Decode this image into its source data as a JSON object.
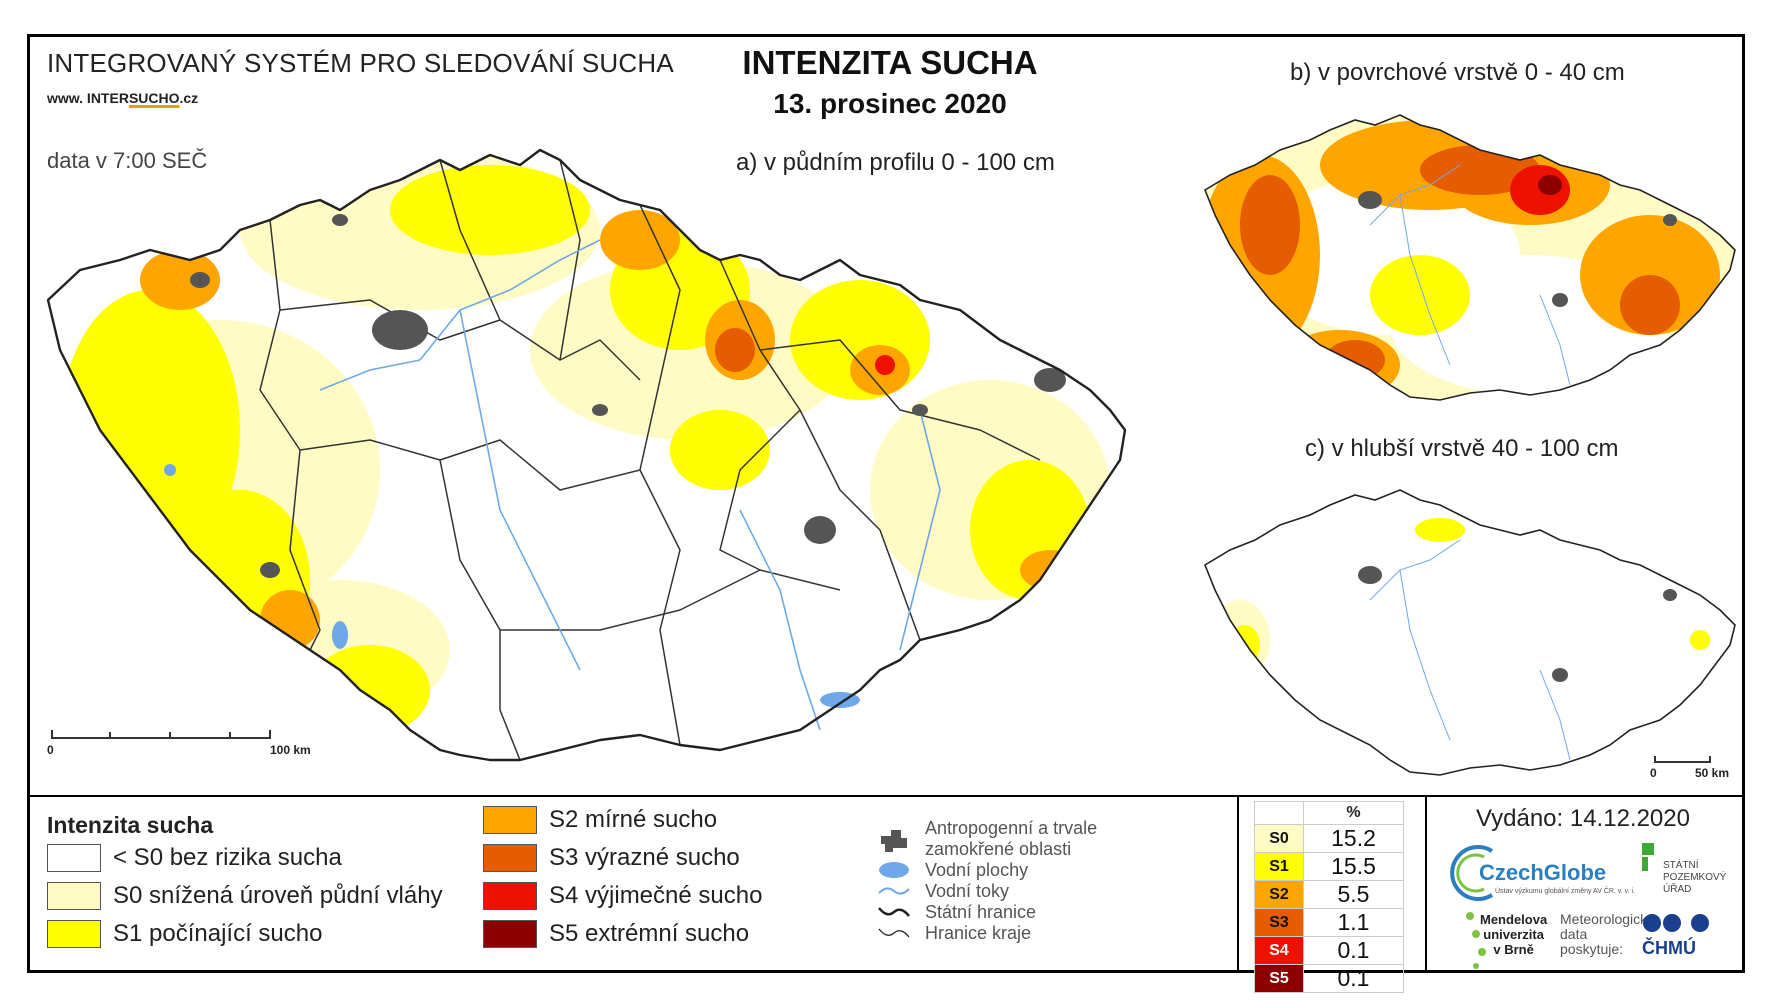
{
  "header": {
    "system_title": "INTEGROVANÝ SYSTÉM PRO SLEDOVÁNÍ SUCHA",
    "website_prefix": "www. INTER",
    "website_highlight": "SUCHO",
    "website_suffix": ".cz",
    "data_time": "data v 7:00 SEČ",
    "main_title": "INTENZITA SUCHA",
    "main_date": "13. prosinec 2020"
  },
  "maps": {
    "a_label": "a) v půdním profilu 0 - 100 cm",
    "b_label": "b) v povrchové vrstvě 0 - 40 cm",
    "c_label": "c) v hlubší vrstvě 40 - 100 cm",
    "scale_a_start": "0",
    "scale_a_end": "100 km",
    "scale_c_start": "0",
    "scale_c_end": "50 km"
  },
  "legend": {
    "title": "Intenzita sucha",
    "classes": [
      {
        "label": "< S0 bez rizika sucha",
        "color": "#ffffff"
      },
      {
        "label": "S0 snížená úroveň půdní vláhy",
        "color": "#fffbc4"
      },
      {
        "label": "S1 počínající sucho",
        "color": "#ffff00"
      },
      {
        "label": "S2 mírné sucho",
        "color": "#ffa500"
      },
      {
        "label": "S3 výrazné sucho",
        "color": "#e65c00"
      },
      {
        "label": "S4 výjimečné sucho",
        "color": "#ee1100"
      },
      {
        "label": "S5 extrémní sucho",
        "color": "#8b0000"
      }
    ],
    "symbols": [
      {
        "label_line1": "Antropogenní a trvale",
        "label_line2": "zamokřené oblasti",
        "icon": "urban-area-icon"
      },
      {
        "label_line1": "Vodní plochy",
        "icon": "water-body-icon"
      },
      {
        "label_line1": "Vodní toky",
        "icon": "river-icon"
      },
      {
        "label_line1": "Státní hranice",
        "icon": "state-border-icon"
      },
      {
        "label_line1": "Hranice kraje",
        "icon": "region-border-icon"
      }
    ]
  },
  "stats": {
    "header": "%",
    "rows": [
      {
        "cls": "S0",
        "value": "15.2",
        "color": "#fffbc4"
      },
      {
        "cls": "S1",
        "value": "15.5",
        "color": "#ffff00"
      },
      {
        "cls": "S2",
        "value": "5.5",
        "color": "#ffa500"
      },
      {
        "cls": "S3",
        "value": "1.1",
        "color": "#e65c00"
      },
      {
        "cls": "S4",
        "value": "0.1",
        "color": "#ee1100"
      },
      {
        "cls": "S5",
        "value": "0.1",
        "color": "#8b0000"
      }
    ]
  },
  "footer": {
    "issued": "Vydáno: 14.12.2020",
    "czechglobe": "CzechGlobe",
    "czechglobe_sub": "Ústav výzkumu globální změny AV ČR, v. v. i.",
    "spu_line1": "STÁTNÍ",
    "spu_line2": "POZEMKOVÝ",
    "spu_line3": "ÚŘAD",
    "mendel_line1": "Mendelova",
    "mendel_line2": "univerzita",
    "mendel_line3": "v Brně",
    "meteo_line1": "Meteorologická",
    "meteo_line2": "data",
    "meteo_line3": "poskytuje:",
    "chmu": "ČHMÚ"
  }
}
